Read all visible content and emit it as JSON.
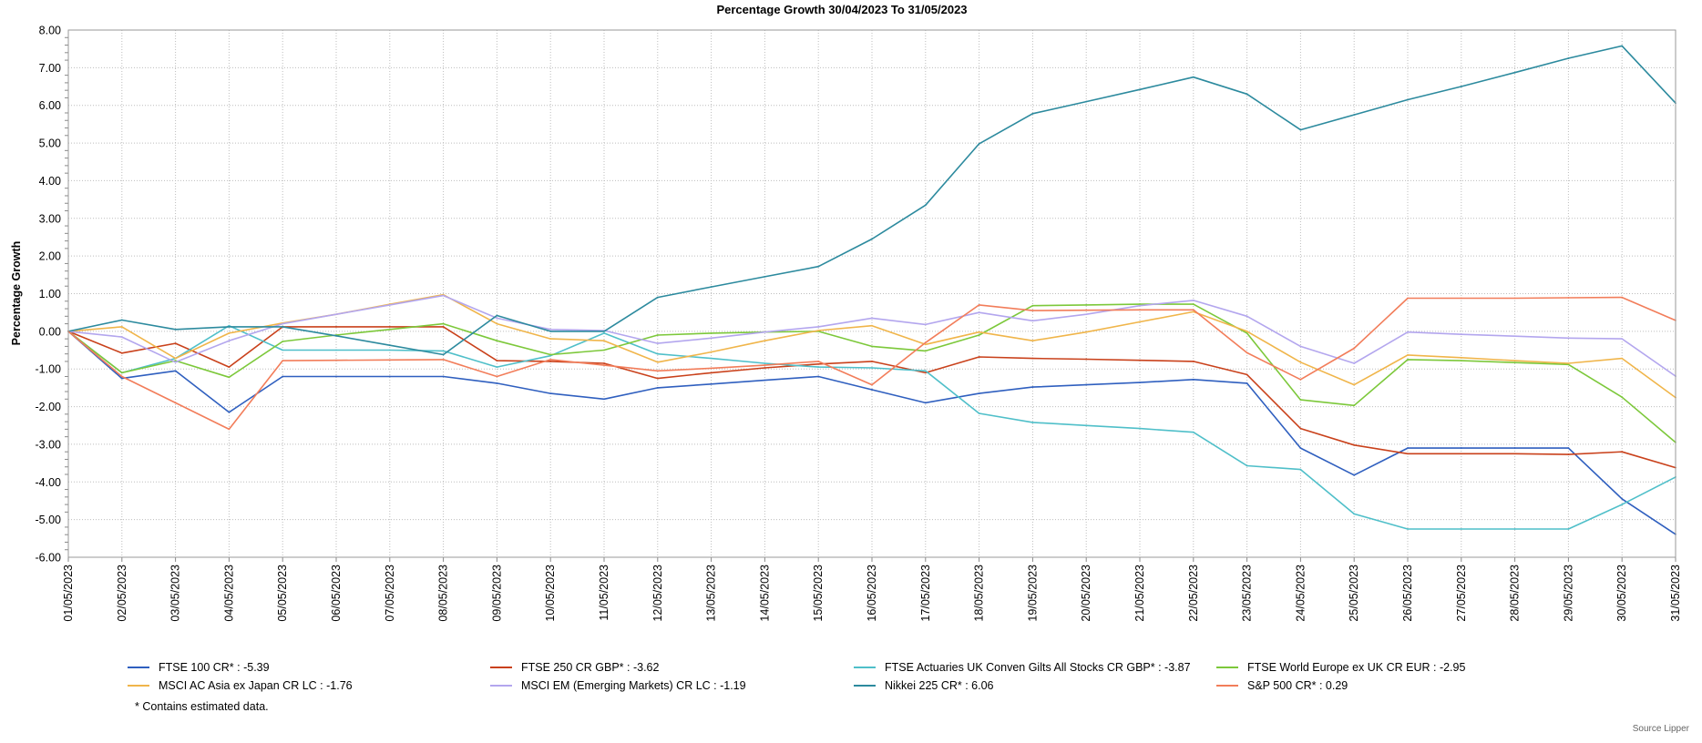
{
  "chart_data": {
    "type": "line",
    "title": "Percentage Growth 30/04/2023 To 31/05/2023",
    "ylabel": "Percentage Growth",
    "xlabel": "",
    "ylim": [
      -6,
      8
    ],
    "yticks": [
      "8.00",
      "7.00",
      "6.00",
      "5.00",
      "4.00",
      "3.00",
      "2.00",
      "1.00",
      "0.00",
      "-1.00",
      "-2.00",
      "-3.00",
      "-4.00",
      "-5.00",
      "-6.00"
    ],
    "grid": true,
    "legend_position": "bottom",
    "x": [
      "01/05/2023",
      "02/05/2023",
      "03/05/2023",
      "04/05/2023",
      "05/05/2023",
      "06/05/2023",
      "07/05/2023",
      "08/05/2023",
      "09/05/2023",
      "10/05/2023",
      "11/05/2023",
      "12/05/2023",
      "13/05/2023",
      "14/05/2023",
      "15/05/2023",
      "16/05/2023",
      "17/05/2023",
      "18/05/2023",
      "19/05/2023",
      "20/05/2023",
      "21/05/2023",
      "22/05/2023",
      "23/05/2023",
      "24/05/2023",
      "25/05/2023",
      "26/05/2023",
      "27/05/2023",
      "28/05/2023",
      "29/05/2023",
      "30/05/2023",
      "31/05/2023"
    ],
    "series": [
      {
        "name": "FTSE 100 CR* : -5.39",
        "color": "#2f5fbf",
        "values": [
          0,
          -1.25,
          -1.05,
          -2.15,
          -1.2,
          -1.2,
          -1.2,
          -1.2,
          -1.38,
          -1.65,
          -1.8,
          -1.5,
          -1.4,
          -1.3,
          -1.2,
          -1.55,
          -1.9,
          -1.65,
          -1.48,
          -1.42,
          -1.36,
          -1.28,
          -1.38,
          -3.1,
          -3.82,
          -3.1,
          -3.1,
          -3.1,
          -3.1,
          -4.45,
          -5.39
        ]
      },
      {
        "name": "FTSE 250 CR GBP* : -3.62",
        "color": "#c9411b",
        "values": [
          0,
          -0.58,
          -0.32,
          -0.95,
          0.12,
          0.12,
          0.12,
          0.12,
          -0.78,
          -0.8,
          -0.85,
          -1.25,
          -1.1,
          -0.97,
          -0.87,
          -0.8,
          -1.1,
          -0.68,
          -0.72,
          -0.74,
          -0.77,
          -0.8,
          -1.15,
          -2.58,
          -3.02,
          -3.25,
          -3.25,
          -3.25,
          -3.27,
          -3.2,
          -3.62
        ]
      },
      {
        "name": "FTSE Actuaries UK Conven Gilts All Stocks CR GBP* : -3.87",
        "color": "#4fbfc9",
        "values": [
          0,
          -1.1,
          -0.72,
          0.15,
          -0.5,
          -0.5,
          -0.5,
          -0.52,
          -0.95,
          -0.65,
          -0.05,
          -0.6,
          -0.72,
          -0.85,
          -0.95,
          -0.97,
          -1.05,
          -2.18,
          -2.42,
          -2.5,
          -2.58,
          -2.68,
          -3.57,
          -3.67,
          -4.85,
          -5.25,
          -5.25,
          -5.25,
          -5.25,
          -4.6,
          -3.87
        ]
      },
      {
        "name": "FTSE World Europe ex UK CR EUR : -2.95",
        "color": "#7cc83a",
        "values": [
          0,
          -1.1,
          -0.78,
          -1.22,
          -0.27,
          -0.1,
          0.05,
          0.2,
          -0.25,
          -0.62,
          -0.5,
          -0.1,
          -0.05,
          -0.02,
          0,
          -0.4,
          -0.52,
          -0.1,
          0.68,
          0.7,
          0.72,
          0.72,
          -0.05,
          -1.82,
          -1.97,
          -0.75,
          -0.78,
          -0.83,
          -0.88,
          -1.75,
          -2.95
        ]
      },
      {
        "name": "MSCI AC Asia ex Japan CR LC : -1.76",
        "color": "#f0b54a",
        "values": [
          0,
          0.12,
          -0.72,
          -0.05,
          0.22,
          0.45,
          0.72,
          0.97,
          0.2,
          -0.2,
          -0.25,
          -0.82,
          -0.55,
          -0.25,
          0.02,
          0.15,
          -0.35,
          -0.02,
          -0.25,
          -0.02,
          0.25,
          0.52,
          0,
          -0.82,
          -1.42,
          -0.63,
          -0.7,
          -0.78,
          -0.85,
          -0.72,
          -1.76
        ]
      },
      {
        "name": "MSCI EM (Emerging Markets) CR LC : -1.19",
        "color": "#b3a6ee",
        "values": [
          0,
          -0.15,
          -0.82,
          -0.25,
          0.2,
          0.45,
          0.7,
          0.95,
          0.35,
          0.05,
          0.02,
          -0.32,
          -0.18,
          -0.02,
          0.12,
          0.35,
          0.18,
          0.5,
          0.28,
          0.45,
          0.68,
          0.82,
          0.4,
          -0.4,
          -0.85,
          -0.02,
          -0.08,
          -0.13,
          -0.18,
          -0.2,
          -1.19
        ]
      },
      {
        "name": "Nikkei 225 CR* : 6.06",
        "color": "#2c8a9e",
        "values": [
          0,
          0.3,
          0.05,
          0.12,
          0.12,
          -0.12,
          -0.37,
          -0.62,
          0.42,
          0,
          0,
          0.9,
          1.18,
          1.45,
          1.72,
          2.45,
          3.35,
          4.98,
          5.78,
          6.1,
          6.42,
          6.75,
          6.3,
          5.35,
          5.75,
          6.15,
          6.5,
          6.87,
          7.25,
          7.58,
          6.06
        ]
      },
      {
        "name": "S&P 500 CR* : 0.29",
        "color": "#f27d5a",
        "values": [
          0,
          -1.2,
          -1.9,
          -2.6,
          -0.78,
          -0.77,
          -0.76,
          -0.75,
          -1.2,
          -0.75,
          -0.9,
          -1.05,
          -0.98,
          -0.9,
          -0.8,
          -1.42,
          -0.3,
          0.7,
          0.55,
          0.56,
          0.57,
          0.57,
          -0.57,
          -1.28,
          -0.45,
          0.88,
          0.88,
          0.88,
          0.89,
          0.9,
          0.29
        ]
      }
    ]
  },
  "footnote": "*  Contains estimated data.",
  "source": "Source Lipper"
}
